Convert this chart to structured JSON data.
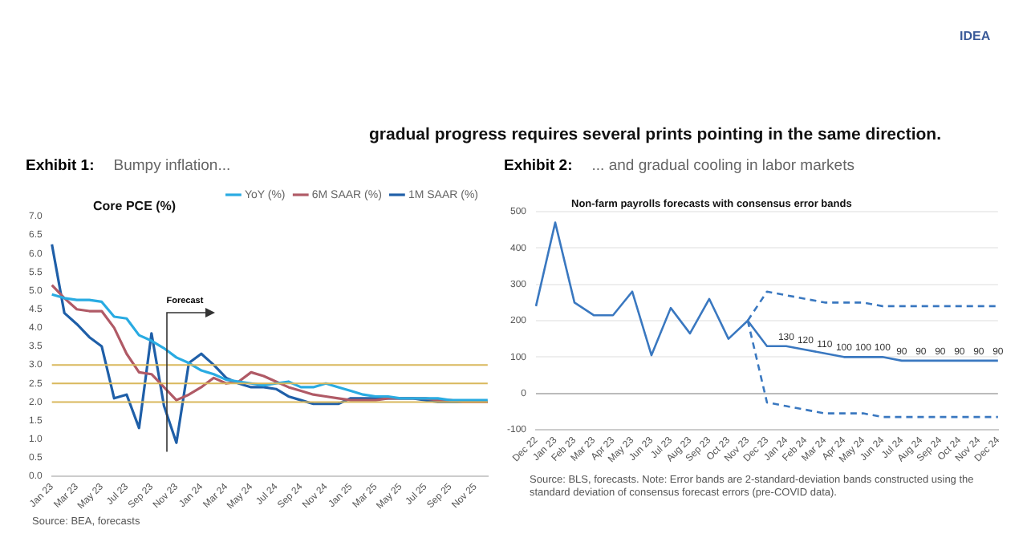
{
  "chart_data": [
    {
      "type": "line",
      "title": "Exhibit 1:",
      "subtitle": "Bumpy inflation...",
      "annotations": [
        "gradual progress requires several prints pointing in the same direction.",
        "IDEA",
        "Core PCE (%)",
        "Forecast",
        "Source: BEA, forecasts"
      ],
      "categories": [
        "Jan 23",
        null,
        "Mar 23",
        null,
        "May 23",
        null,
        "Jul 23",
        null,
        "Sep 23",
        null,
        "Nov 23",
        null,
        "Jan 24",
        null,
        "Mar 24",
        null,
        "May 24",
        null,
        "Jul 24",
        null,
        "Sep 24",
        null,
        "Nov 24",
        null,
        "Jan 25",
        null,
        "Mar 25",
        null,
        "May 25",
        null,
        "Jul 25",
        null,
        "Sep 25",
        null,
        "Nov 25",
        null
      ],
      "series": [
        {
          "name": "YoY (%)",
          "color": "#29abe2",
          "values": [
            4.9,
            4.8,
            4.75,
            4.75,
            4.7,
            4.3,
            4.25,
            3.8,
            3.65,
            3.45,
            3.2,
            3.05,
            2.85,
            2.75,
            2.6,
            2.55,
            2.5,
            2.45,
            2.5,
            2.55,
            2.4,
            2.4,
            2.5,
            2.4,
            2.3,
            2.2,
            2.15,
            2.15,
            2.1,
            2.1,
            2.1,
            2.1,
            2.05,
            2.05,
            2.05,
            2.05
          ]
        },
        {
          "name": "6M SAAR (%)",
          "color": "#b05a66",
          "values": [
            5.15,
            4.8,
            4.5,
            4.45,
            4.45,
            4.0,
            3.3,
            2.8,
            2.75,
            2.4,
            2.05,
            2.2,
            2.4,
            2.65,
            2.5,
            2.55,
            2.8,
            2.7,
            2.55,
            2.4,
            2.3,
            2.2,
            2.15,
            2.1,
            2.05,
            2.05,
            2.05,
            2.1,
            2.1,
            2.1,
            2.1,
            2.05,
            2.05,
            2.0,
            2.0,
            2.0
          ]
        },
        {
          "name": "1M SAAR (%)",
          "color": "#1f5fa8",
          "values": [
            6.25,
            4.4,
            4.1,
            3.75,
            3.5,
            2.1,
            2.2,
            1.3,
            3.85,
            1.9,
            0.9,
            3.05,
            3.3,
            3.0,
            2.65,
            2.5,
            2.4,
            2.4,
            2.35,
            2.15,
            2.05,
            1.95,
            1.95,
            1.95,
            2.1,
            2.1,
            2.1,
            2.1,
            2.1,
            2.1,
            2.05,
            2.0,
            2.0,
            2.0,
            2.0,
            2.0
          ]
        }
      ],
      "ylim": [
        0,
        7
      ],
      "yticks": [
        {
          "value": 0,
          "label": "0.0"
        },
        {
          "value": 0.5,
          "label": "0.5"
        },
        {
          "value": 1,
          "label": "1.0"
        },
        {
          "value": 1.5,
          "label": "1.5"
        },
        {
          "value": 2,
          "label": "2.0"
        },
        {
          "value": 2.5,
          "label": "2.5"
        },
        {
          "value": 3,
          "label": "3.0"
        },
        {
          "value": 3.5,
          "label": "3.5"
        },
        {
          "value": 4,
          "label": "4.0"
        },
        {
          "value": 4.5,
          "label": "4.5"
        },
        {
          "value": 5,
          "label": "5.0"
        },
        {
          "value": 5.5,
          "label": "5.5"
        },
        {
          "value": 6,
          "label": "6.0"
        },
        {
          "value": 6.5,
          "label": "6.5"
        },
        {
          "value": 7,
          "label": "7.0"
        }
      ],
      "ref_lines": [
        {
          "axis": "y",
          "value": 2,
          "color": "#d9b85c"
        },
        {
          "axis": "y",
          "value": 2.5,
          "color": "#d9b85c"
        },
        {
          "axis": "y",
          "value": 3,
          "color": "#d9b85c"
        }
      ],
      "legend": "top right",
      "marker": "none"
    },
    {
      "type": "line",
      "title": "Exhibit 2:",
      "subtitle": "... and gradual cooling in labor markets",
      "annotations": [
        "Non-farm payrolls forecasts with consensus error bands",
        "Source: BLS, forecasts. Note: Error bands are 2-standard-deviation bands constructed using the standard deviation of consensus forecast errors (pre-COVID data)."
      ],
      "categories": [
        "Dec 22",
        "Jan 23",
        "Feb 23",
        "Mar 23",
        "Apr 23",
        "May 23",
        "Jun 23",
        "Jul 23",
        "Aug 23",
        "Sep 23",
        "Oct 23",
        "Nov 23",
        "Dec 23",
        "Jan 24",
        "Feb 24",
        "Mar 24",
        "Apr 24",
        "May 24",
        "Jun 24",
        "Jul 24",
        "Aug 24",
        "Sep 24",
        "Oct 24",
        "Nov 24",
        "Dec 24"
      ],
      "series": [
        {
          "color": "#3a78c0",
          "values": [
            240,
            470,
            250,
            215,
            215,
            280,
            105,
            235,
            165,
            260,
            150,
            200,
            130,
            130,
            120,
            110,
            100,
            100,
            100,
            90,
            90,
            90,
            90,
            90,
            90
          ],
          "value_labels": [
            null,
            null,
            null,
            null,
            null,
            null,
            null,
            null,
            null,
            null,
            null,
            null,
            null,
            "130",
            "120",
            "110",
            "100",
            "100",
            "100",
            "90",
            "90",
            "90",
            "90",
            "90",
            "90"
          ]
        },
        {
          "color": "#3a78c0",
          "line_style": "dashed",
          "values": [
            null,
            null,
            null,
            null,
            null,
            null,
            null,
            null,
            null,
            null,
            null,
            200,
            280,
            270,
            260,
            250,
            250,
            250,
            240,
            240,
            240,
            240,
            240,
            240,
            240
          ]
        },
        {
          "color": "#3a78c0",
          "line_style": "dashed",
          "values": [
            null,
            null,
            null,
            null,
            null,
            null,
            null,
            null,
            null,
            null,
            null,
            200,
            -25,
            -35,
            -45,
            -55,
            -55,
            -55,
            -65,
            -65,
            -65,
            -65,
            -65,
            -65,
            -65
          ]
        }
      ],
      "ylim": [
        -100,
        500
      ],
      "yticks": [
        -100,
        0,
        100,
        200,
        300,
        400,
        500
      ],
      "grid": "y",
      "marker": "none"
    }
  ]
}
